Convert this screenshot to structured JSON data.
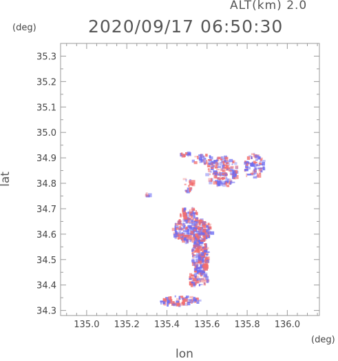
{
  "header": {
    "alt_label": "ALT(km) 2.0",
    "timestamp": "2020/09/17 06:50:30"
  },
  "chart_data": {
    "type": "heatmap",
    "title": "2020/09/17 06:50:30",
    "xlabel": "lon",
    "ylabel": "lat",
    "xunit": "(deg)",
    "yunit": "(deg)",
    "xlim": [
      134.87,
      136.16
    ],
    "ylim": [
      34.28,
      35.35
    ],
    "xticks": [
      "135.0",
      "135.2",
      "135.4",
      "135.6",
      "135.8",
      "136.0"
    ],
    "yticks": [
      "34.3",
      "34.4",
      "34.5",
      "34.6",
      "34.7",
      "34.8",
      "34.9",
      "35.0",
      "35.1",
      "35.2",
      "35.3"
    ],
    "grid": false,
    "colors": {
      "positive": "#f26d6d",
      "negative": "#6b6bf2",
      "axis": "#999999"
    },
    "clusters": [
      {
        "lon": 135.52,
        "lat": 34.62,
        "rlon": 0.1,
        "rlat": 0.05,
        "n": 260
      },
      {
        "lon": 135.56,
        "lat": 34.52,
        "rlon": 0.04,
        "rlat": 0.07,
        "n": 170
      },
      {
        "lon": 135.55,
        "lat": 34.43,
        "rlon": 0.05,
        "rlat": 0.03,
        "n": 60
      },
      {
        "lon": 135.46,
        "lat": 34.34,
        "rlon": 0.1,
        "rlat": 0.02,
        "n": 70
      },
      {
        "lon": 135.67,
        "lat": 34.85,
        "rlon": 0.08,
        "rlat": 0.06,
        "n": 170
      },
      {
        "lon": 135.83,
        "lat": 34.87,
        "rlon": 0.05,
        "rlat": 0.05,
        "n": 70
      },
      {
        "lon": 135.57,
        "lat": 34.9,
        "rlon": 0.05,
        "rlat": 0.02,
        "n": 25
      },
      {
        "lon": 135.49,
        "lat": 34.92,
        "rlon": 0.03,
        "rlat": 0.01,
        "n": 15
      },
      {
        "lon": 135.5,
        "lat": 34.8,
        "rlon": 0.03,
        "rlat": 0.03,
        "n": 18
      },
      {
        "lon": 135.3,
        "lat": 34.76,
        "rlon": 0.01,
        "rlat": 0.01,
        "n": 5
      },
      {
        "lon": 135.5,
        "lat": 34.69,
        "rlon": 0.05,
        "rlat": 0.02,
        "n": 40
      }
    ]
  }
}
